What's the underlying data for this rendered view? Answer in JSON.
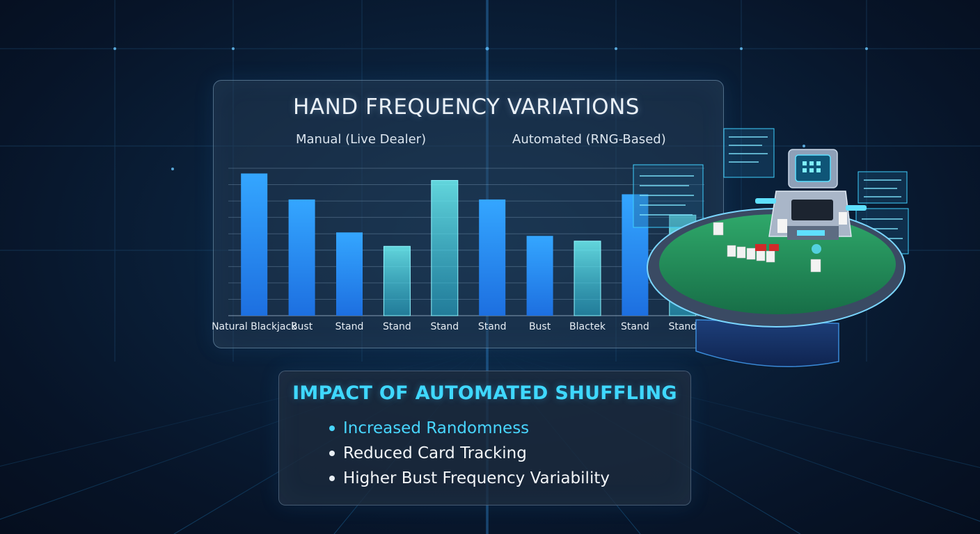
{
  "chart_data": {
    "type": "bar",
    "title": "HAND FREQUENCY VARIATIONS",
    "groups": [
      "Manual (Live Dealer)",
      "Automated (RNG-Based)"
    ],
    "categories": [
      "Natural Blackjack",
      "Bust",
      "Stand",
      "Stand",
      "Stand",
      "Stand",
      "Bust",
      "Blactek",
      "Stand",
      "Stand"
    ],
    "values": [
      8.2,
      6.7,
      4.8,
      4.0,
      7.8,
      6.7,
      4.6,
      4.3,
      7.0,
      5.8
    ],
    "bar_styles": [
      "solid",
      "solid",
      "solid",
      "glow",
      "glow",
      "solid",
      "solid",
      "glow",
      "solid",
      "glow"
    ],
    "ylim": [
      0,
      8.5
    ],
    "xlabel": "",
    "ylabel": "",
    "grid": true,
    "colors": {
      "solid": "#2f9bff",
      "glow": "#5fe6f2"
    }
  },
  "impact": {
    "title": "IMPACT OF AUTOMATED SHUFFLING",
    "items": [
      {
        "text": "Increased Randomness",
        "highlight": true
      },
      {
        "text": "Reduced Card Tracking",
        "highlight": false
      },
      {
        "text": "Higher Bust Frequency Variability",
        "highlight": false
      }
    ],
    "accent_color": "#3fd8ff"
  },
  "illustration": {
    "subject": "automated-card-shuffler-on-blackjack-table",
    "icon": "shuffler-machine-icon"
  }
}
